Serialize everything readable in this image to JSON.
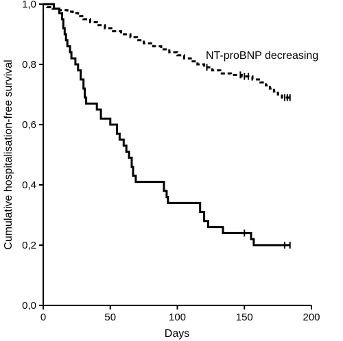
{
  "chart_data": {
    "type": "line",
    "title": "",
    "xlabel": "Days",
    "ylabel": "Cumulative hospitalisation-free survival",
    "xlim": [
      0,
      200
    ],
    "ylim": [
      0.0,
      1.0
    ],
    "x_ticks": [
      0,
      50,
      100,
      150,
      200
    ],
    "x_tick_labels": [
      "0",
      "50",
      "100",
      "150",
      "200"
    ],
    "y_ticks": [
      0.0,
      0.2,
      0.4,
      0.6,
      0.8,
      1.0
    ],
    "y_tick_labels": [
      "0,0",
      "0,2",
      "0,4",
      "0,6",
      "0,8",
      "1,0"
    ],
    "grid": false,
    "annotations": [
      {
        "text": "NT-proBNP decreasing",
        "x": 127,
        "y": 0.81
      }
    ],
    "series": [
      {
        "style": "dashed",
        "step": true,
        "points": [
          [
            0,
            1.0
          ],
          [
            3,
            0.99
          ],
          [
            7,
            0.985
          ],
          [
            12,
            0.98
          ],
          [
            18,
            0.975
          ],
          [
            22,
            0.97
          ],
          [
            26,
            0.96
          ],
          [
            30,
            0.95
          ],
          [
            35,
            0.94
          ],
          [
            40,
            0.93
          ],
          [
            46,
            0.92
          ],
          [
            52,
            0.91
          ],
          [
            58,
            0.9
          ],
          [
            65,
            0.89
          ],
          [
            70,
            0.88
          ],
          [
            75,
            0.87
          ],
          [
            82,
            0.86
          ],
          [
            88,
            0.85
          ],
          [
            94,
            0.84
          ],
          [
            100,
            0.83
          ],
          [
            105,
            0.82
          ],
          [
            110,
            0.81
          ],
          [
            115,
            0.8
          ],
          [
            120,
            0.79
          ],
          [
            126,
            0.78
          ],
          [
            132,
            0.77
          ],
          [
            140,
            0.765
          ],
          [
            148,
            0.76
          ],
          [
            156,
            0.75
          ],
          [
            162,
            0.74
          ],
          [
            166,
            0.73
          ],
          [
            169,
            0.72
          ],
          [
            172,
            0.71
          ],
          [
            175,
            0.7
          ],
          [
            178,
            0.69
          ],
          [
            186,
            0.69
          ]
        ],
        "censor_x": [
          122,
          147,
          150,
          153,
          180,
          182,
          184
        ]
      },
      {
        "style": "solid",
        "step": true,
        "points": [
          [
            0,
            1.0
          ],
          [
            8,
            0.985
          ],
          [
            12,
            0.97
          ],
          [
            14,
            0.95
          ],
          [
            15,
            0.92
          ],
          [
            16,
            0.9
          ],
          [
            17,
            0.88
          ],
          [
            18,
            0.86
          ],
          [
            20,
            0.84
          ],
          [
            21,
            0.82
          ],
          [
            24,
            0.8
          ],
          [
            26,
            0.78
          ],
          [
            28,
            0.75
          ],
          [
            30,
            0.72
          ],
          [
            31,
            0.69
          ],
          [
            32,
            0.67
          ],
          [
            40,
            0.65
          ],
          [
            43,
            0.62
          ],
          [
            50,
            0.6
          ],
          [
            55,
            0.57
          ],
          [
            57,
            0.55
          ],
          [
            60,
            0.53
          ],
          [
            62,
            0.51
          ],
          [
            64,
            0.49
          ],
          [
            66,
            0.46
          ],
          [
            67,
            0.43
          ],
          [
            69,
            0.41
          ],
          [
            90,
            0.38
          ],
          [
            92,
            0.36
          ],
          [
            93,
            0.34
          ],
          [
            117,
            0.31
          ],
          [
            120,
            0.28
          ],
          [
            123,
            0.26
          ],
          [
            134,
            0.24
          ],
          [
            155,
            0.22
          ],
          [
            157,
            0.2
          ],
          [
            184,
            0.2
          ]
        ],
        "censor_x": [
          150,
          180,
          184
        ]
      }
    ]
  }
}
